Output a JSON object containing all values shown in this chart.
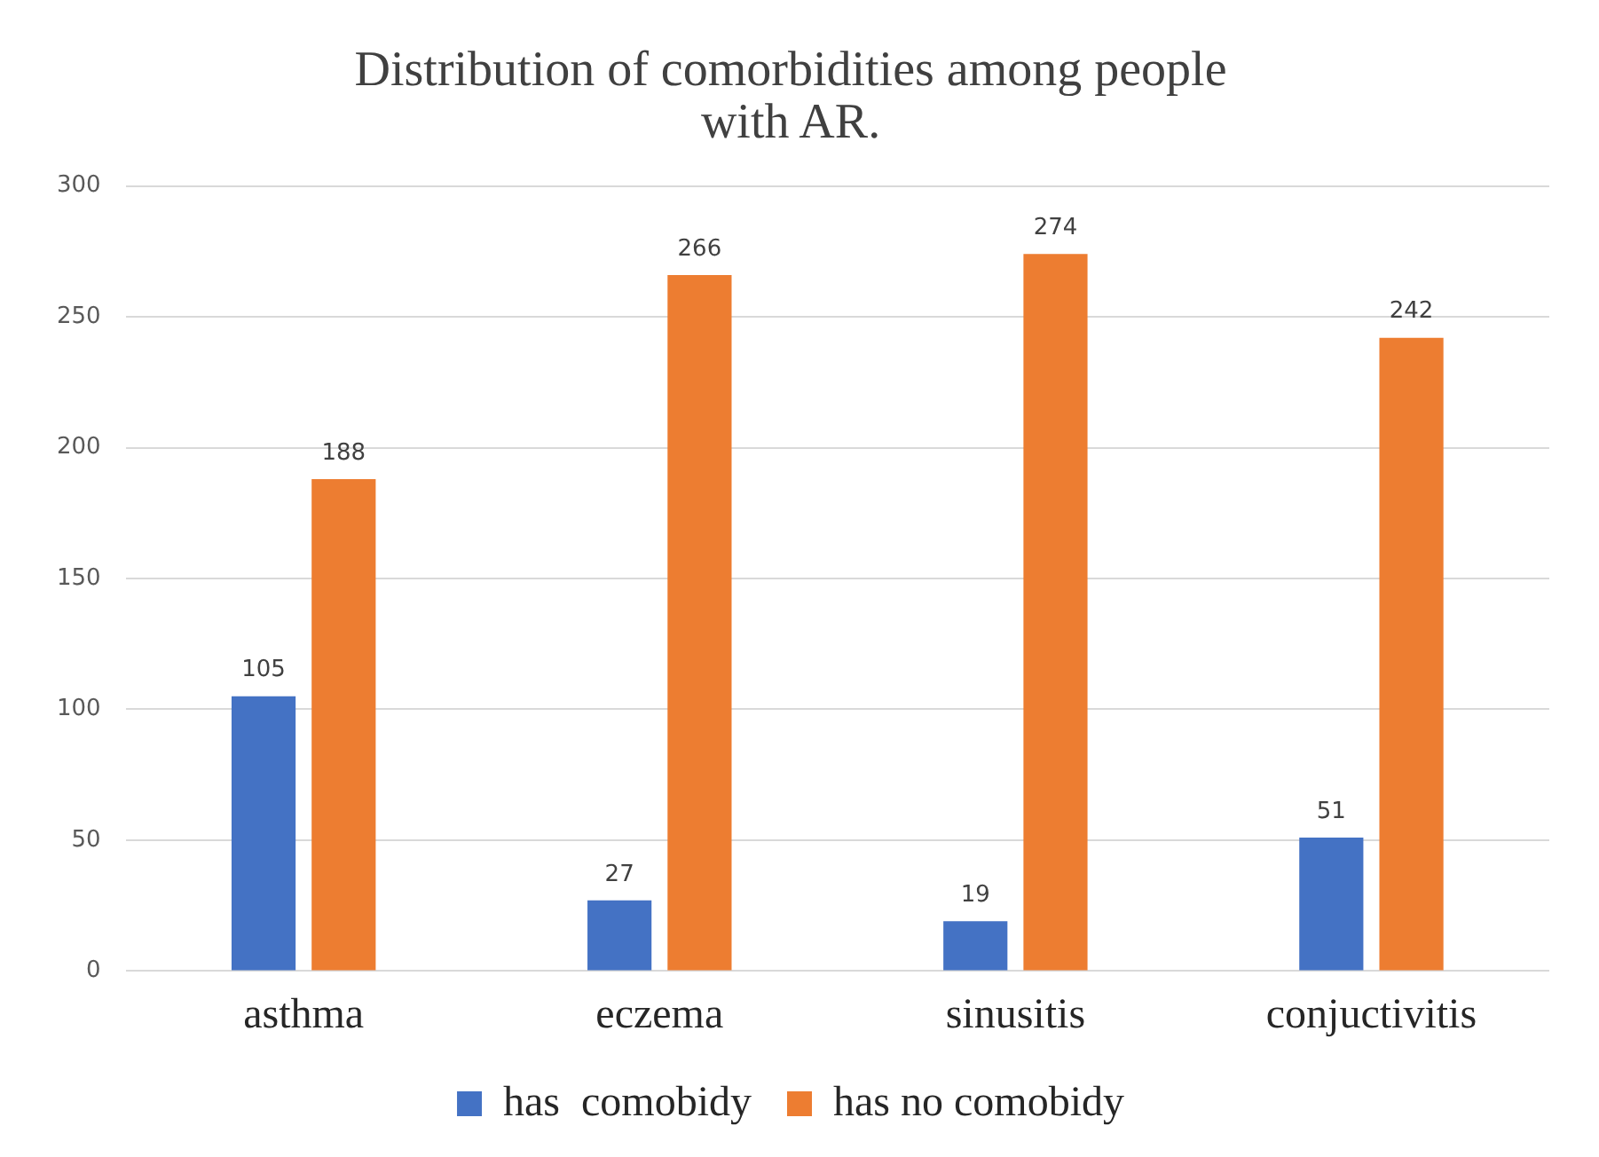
{
  "chart_data": {
    "type": "bar",
    "title": [
      "Distribution of comorbidities among people",
      "with AR."
    ],
    "categories": [
      "asthma",
      "eczema",
      "sinusitis",
      "conjuctivitis"
    ],
    "series": [
      {
        "name": "has  comobidy",
        "color": "#4472c4",
        "values": [
          105,
          27,
          19,
          51
        ]
      },
      {
        "name": "has no comobidy",
        "color": "#ed7d31",
        "values": [
          188,
          266,
          274,
          242
        ]
      }
    ],
    "ylim": [
      0,
      300
    ],
    "yticks": [
      0,
      50,
      100,
      150,
      200,
      250,
      300
    ],
    "grid": "y",
    "legend": "bottom",
    "data_labels": true
  }
}
